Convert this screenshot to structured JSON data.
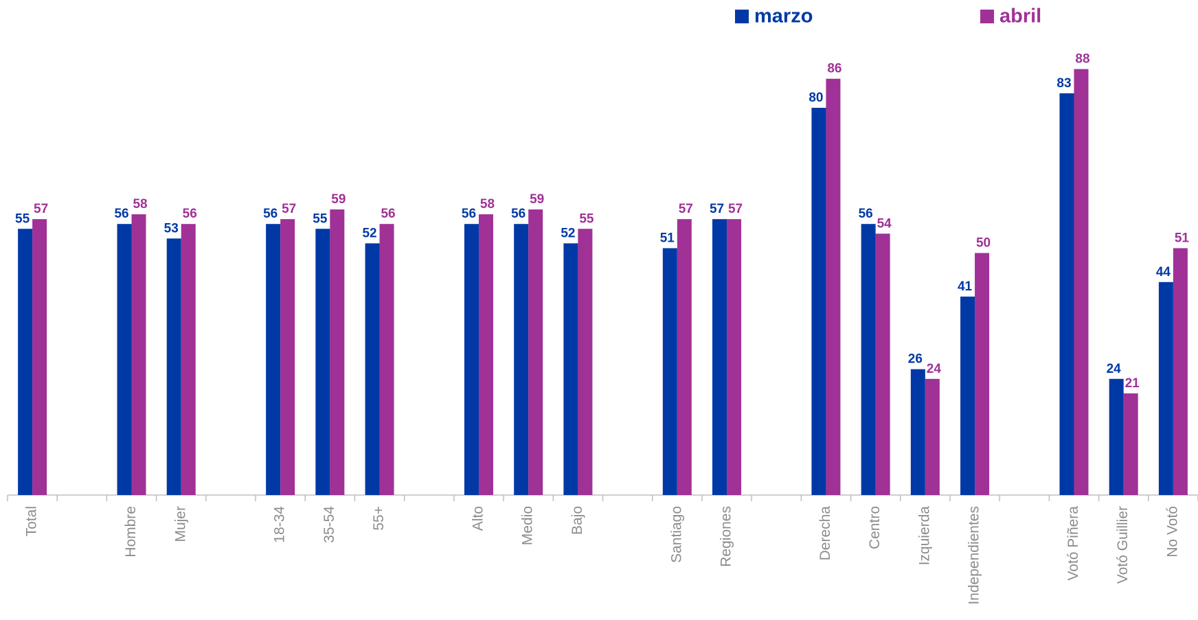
{
  "chart_data": {
    "type": "bar",
    "categories": [
      "Total",
      null,
      "Hombre",
      "Mujer",
      null,
      "18-34",
      "35-54",
      "55+",
      null,
      "Alto",
      "Medio",
      "Bajo",
      null,
      "Santiago",
      "Regiones",
      null,
      "Derecha",
      "Centro",
      "Izquierda",
      "Independientes",
      null,
      "Votó Piñera",
      "Votó Guillier",
      "No Votó"
    ],
    "series": [
      {
        "name": "marzo",
        "color": "#0039a6",
        "values": [
          55,
          null,
          56,
          53,
          null,
          56,
          55,
          52,
          null,
          56,
          56,
          52,
          null,
          51,
          57,
          null,
          80,
          56,
          26,
          41,
          null,
          83,
          24,
          44
        ]
      },
      {
        "name": "abril",
        "color": "#a03196",
        "values": [
          57,
          null,
          58,
          56,
          null,
          57,
          59,
          56,
          null,
          58,
          59,
          55,
          null,
          57,
          57,
          null,
          86,
          54,
          24,
          50,
          null,
          88,
          21,
          51
        ]
      }
    ],
    "ylim": [
      0,
      100
    ],
    "legend": "top"
  }
}
